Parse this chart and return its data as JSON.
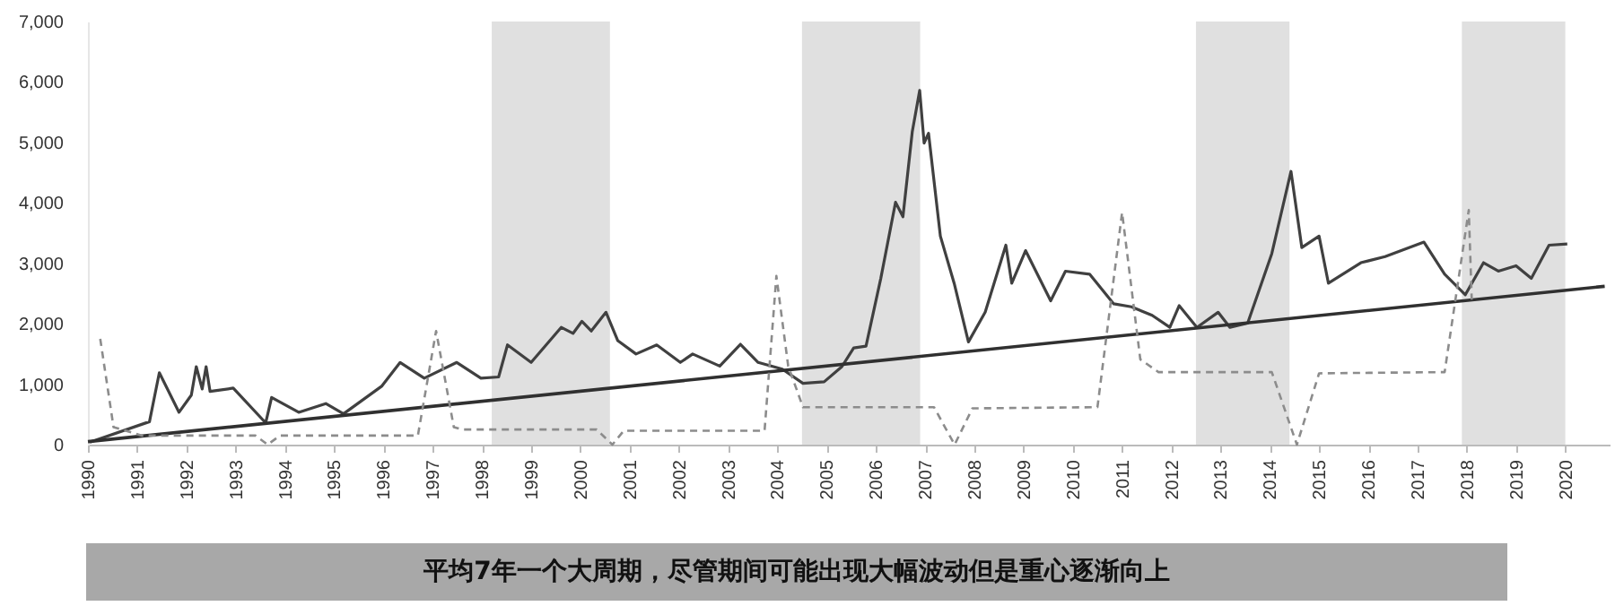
{
  "chart_data": {
    "type": "line",
    "annotations": [
      "平均7年一个大周期，尽管期间可能出现大幅波动但是重心逐渐向上"
    ],
    "xlim": [
      1990,
      2020.9
    ],
    "xticks": [
      1990,
      1991,
      1992,
      1993,
      1994,
      1995,
      1996,
      1997,
      1998,
      1999,
      2000,
      2001,
      2002,
      2003,
      2004,
      2005,
      2006,
      2007,
      2008,
      2009,
      2010,
      2011,
      2012,
      2013,
      2014,
      2015,
      2016,
      2017,
      2018,
      2019,
      2020
    ],
    "ylim": [
      0,
      7000
    ],
    "yticks": [
      0,
      {
        "value": 1000,
        "label": "1,000"
      },
      {
        "value": 2000,
        "label": "2,000"
      },
      {
        "value": 3000,
        "label": "3,000"
      },
      {
        "value": 4000,
        "label": "4,000"
      },
      {
        "value": 5000,
        "label": "5,000"
      },
      {
        "value": 6000,
        "label": "6,000"
      },
      {
        "value": 7000,
        "label": "7,000"
      }
    ],
    "grid": false,
    "bands": [
      {
        "axis": "x",
        "from": 1998.2,
        "to": 2000.6,
        "color": "#e0e0e0"
      },
      {
        "axis": "x",
        "from": 2004.5,
        "to": 2006.9,
        "color": "#e0e0e0"
      },
      {
        "axis": "x",
        "from": 2012.5,
        "to": 2014.4,
        "color": "#e0e0e0"
      },
      {
        "axis": "x",
        "from": 2017.9,
        "to": 2020,
        "color": "#e0e0e0"
      }
    ],
    "series": [
      {
        "color": "#404040",
        "line_style": "solid",
        "x": [
          1990.04,
          1991.25,
          1991.45,
          1991.85,
          1992.1,
          1992.2,
          1992.32,
          1992.4,
          1992.48,
          1992.95,
          1993.61,
          1993.73,
          1994.28,
          1994.83,
          1995.19,
          1995.97,
          1996.34,
          1996.83,
          1997.49,
          1997.98,
          1998.34,
          1998.52,
          1999.0,
          1999.61,
          1999.85,
          2000.03,
          2000.22,
          2000.52,
          2000.76,
          2001.13,
          2001.55,
          2002.03,
          2002.28,
          2002.83,
          2003.25,
          2003.61,
          2004.1,
          2004.52,
          2004.95,
          2005.31,
          2005.55,
          2005.8,
          2006.1,
          2006.4,
          2006.55,
          2006.74,
          2006.89,
          2006.98,
          2007.07,
          2007.31,
          2007.59,
          2007.88,
          2008.22,
          2008.64,
          2008.76,
          2009.04,
          2009.55,
          2009.85,
          2010.34,
          2010.83,
          2011.19,
          2011.61,
          2011.97,
          2012.16,
          2012.52,
          2012.95,
          2013.19,
          2013.55,
          2014.04,
          2014.43,
          2014.65,
          2015.0,
          2015.19,
          2015.85,
          2016.34,
          2017.13,
          2017.55,
          2017.97,
          2018.34,
          2018.64,
          2019.0,
          2019.31,
          2019.67,
          2020.04
        ],
        "values": [
          40,
          380,
          1190,
          535,
          820,
          1290,
          920,
          1290,
          880,
          935,
          360,
          780,
          535,
          680,
          510,
          970,
          1360,
          1100,
          1360,
          1100,
          1120,
          1650,
          1360,
          1940,
          1840,
          2040,
          1880,
          2190,
          1720,
          1500,
          1650,
          1360,
          1500,
          1300,
          1660,
          1360,
          1250,
          1015,
          1040,
          1290,
          1600,
          1630,
          2750,
          4010,
          3770,
          5180,
          5860,
          4990,
          5150,
          3450,
          2670,
          1700,
          2190,
          3300,
          2670,
          3210,
          2380,
          2870,
          2820,
          2330,
          2280,
          2140,
          1940,
          2300,
          1940,
          2190,
          1940,
          2010,
          3160,
          4520,
          3260,
          3450,
          2670,
          3010,
          3110,
          3350,
          2820,
          2480,
          3010,
          2870,
          2960,
          2750,
          3300,
          3320
        ]
      },
      {
        "color": "#303030",
        "line_style": "solid",
        "x": [
          1990,
          2020.8
        ],
        "values": [
          50,
          2620
        ]
      },
      {
        "color": "#8c8c8c",
        "line_style": "dashed",
        "x": [
          1990.25,
          1990.52,
          1991.1,
          1993.4,
          1993.65,
          1993.9,
          1996.7,
          1997.07,
          1997.43,
          1997.6,
          2000.33,
          2000.65,
          2000.88,
          2003.74,
          2003.98,
          2004.22,
          2004.52,
          2007.18,
          2007.6,
          2007.96,
          2010.5,
          2011.0,
          2011.37,
          2011.74,
          2014.04,
          2014.55,
          2015.0,
          2017.55,
          2018.04,
          2018.1
        ],
        "values": [
          1750,
          290,
          150,
          150,
          0,
          150,
          150,
          1880,
          290,
          250,
          250,
          0,
          230,
          230,
          2790,
          1300,
          620,
          620,
          0,
          600,
          620,
          3840,
          1410,
          1200,
          1200,
          0,
          1180,
          1200,
          3880,
          2400
        ]
      }
    ]
  }
}
